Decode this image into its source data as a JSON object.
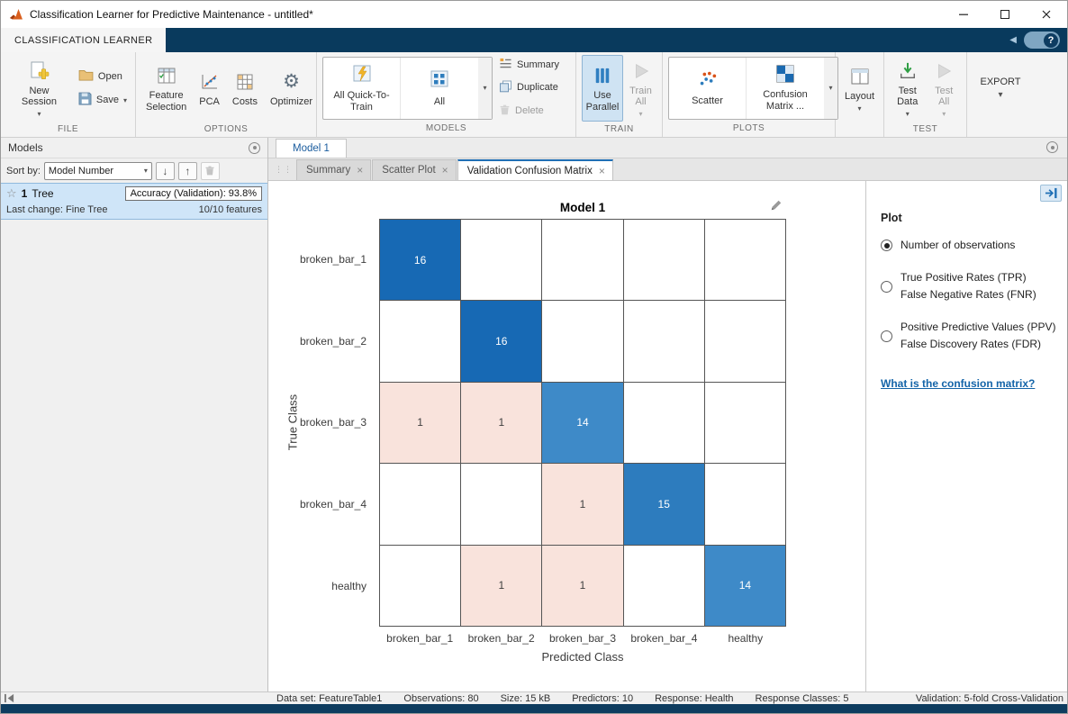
{
  "window": {
    "title": "Classification Learner for Predictive Maintenance - untitled*"
  },
  "tabstrip": {
    "active_tab": "CLASSIFICATION LEARNER",
    "help": "?"
  },
  "ribbon": {
    "file": {
      "label": "FILE",
      "new_session": "New Session",
      "open": "Open",
      "save": "Save"
    },
    "options": {
      "label": "OPTIONS",
      "feature_selection": "Feature Selection",
      "pca": "PCA",
      "costs": "Costs",
      "optimizer": "Optimizer"
    },
    "models": {
      "label": "MODELS",
      "all_quick": "All Quick-To-Train",
      "all": "All",
      "summary": "Summary",
      "duplicate": "Duplicate",
      "delete": "Delete"
    },
    "train": {
      "label": "TRAIN",
      "use_parallel": "Use Parallel",
      "train_all": "Train All"
    },
    "plots": {
      "label": "PLOTS",
      "scatter": "Scatter",
      "confusion_matrix": "Confusion Matrix ..."
    },
    "layout": {
      "label": "Layout"
    },
    "test": {
      "label": "TEST",
      "test_data": "Test Data",
      "test_all": "Test All"
    },
    "export": {
      "label": "EXPORT"
    }
  },
  "models_panel": {
    "title": "Models",
    "sort_by": "Sort by:",
    "sort_value": "Model Number",
    "model": {
      "number": "1",
      "type": "Tree",
      "accuracy": "Accuracy (Validation): 93.8%",
      "last_change": "Last change: Fine Tree",
      "features": "10/10 features"
    }
  },
  "document": {
    "tab": "Model 1",
    "subtabs": [
      {
        "label": "Summary",
        "active": false
      },
      {
        "label": "Scatter Plot",
        "active": false
      },
      {
        "label": "Validation Confusion Matrix",
        "active": true
      }
    ]
  },
  "chart_data": {
    "type": "heatmap",
    "title": "Model 1",
    "xlabel": "Predicted Class",
    "ylabel": "True Class",
    "classes": [
      "broken_bar_1",
      "broken_bar_2",
      "broken_bar_3",
      "broken_bar_4",
      "healthy"
    ],
    "matrix": [
      [
        16,
        null,
        null,
        null,
        null
      ],
      [
        null,
        16,
        null,
        null,
        null
      ],
      [
        1,
        1,
        14,
        null,
        null
      ],
      [
        null,
        null,
        1,
        15,
        null
      ],
      [
        null,
        1,
        1,
        null,
        14
      ]
    ],
    "colors": {
      "diag": {
        "14": "#3e8ac8",
        "15": "#2d7cbe",
        "16": "#1769b4"
      },
      "offdiag": "#f9e3dc",
      "grid_line": "#555555"
    }
  },
  "plot_panel": {
    "title": "Plot",
    "options": [
      {
        "lines": [
          "Number of observations"
        ],
        "selected": true
      },
      {
        "lines": [
          "True Positive Rates (TPR)",
          "False Negative Rates (FNR)"
        ],
        "selected": false
      },
      {
        "lines": [
          "Positive Predictive Values (PPV)",
          "False Discovery Rates (FDR)"
        ],
        "selected": false
      }
    ],
    "link": "What is the confusion matrix?"
  },
  "status_bar": {
    "items": [
      "Data set: FeatureTable1",
      "Observations: 80",
      "Size: 15 kB",
      "Predictors: 10",
      "Response: Health",
      "Response Classes: 5",
      "Validation: 5-fold Cross-Validation"
    ]
  }
}
